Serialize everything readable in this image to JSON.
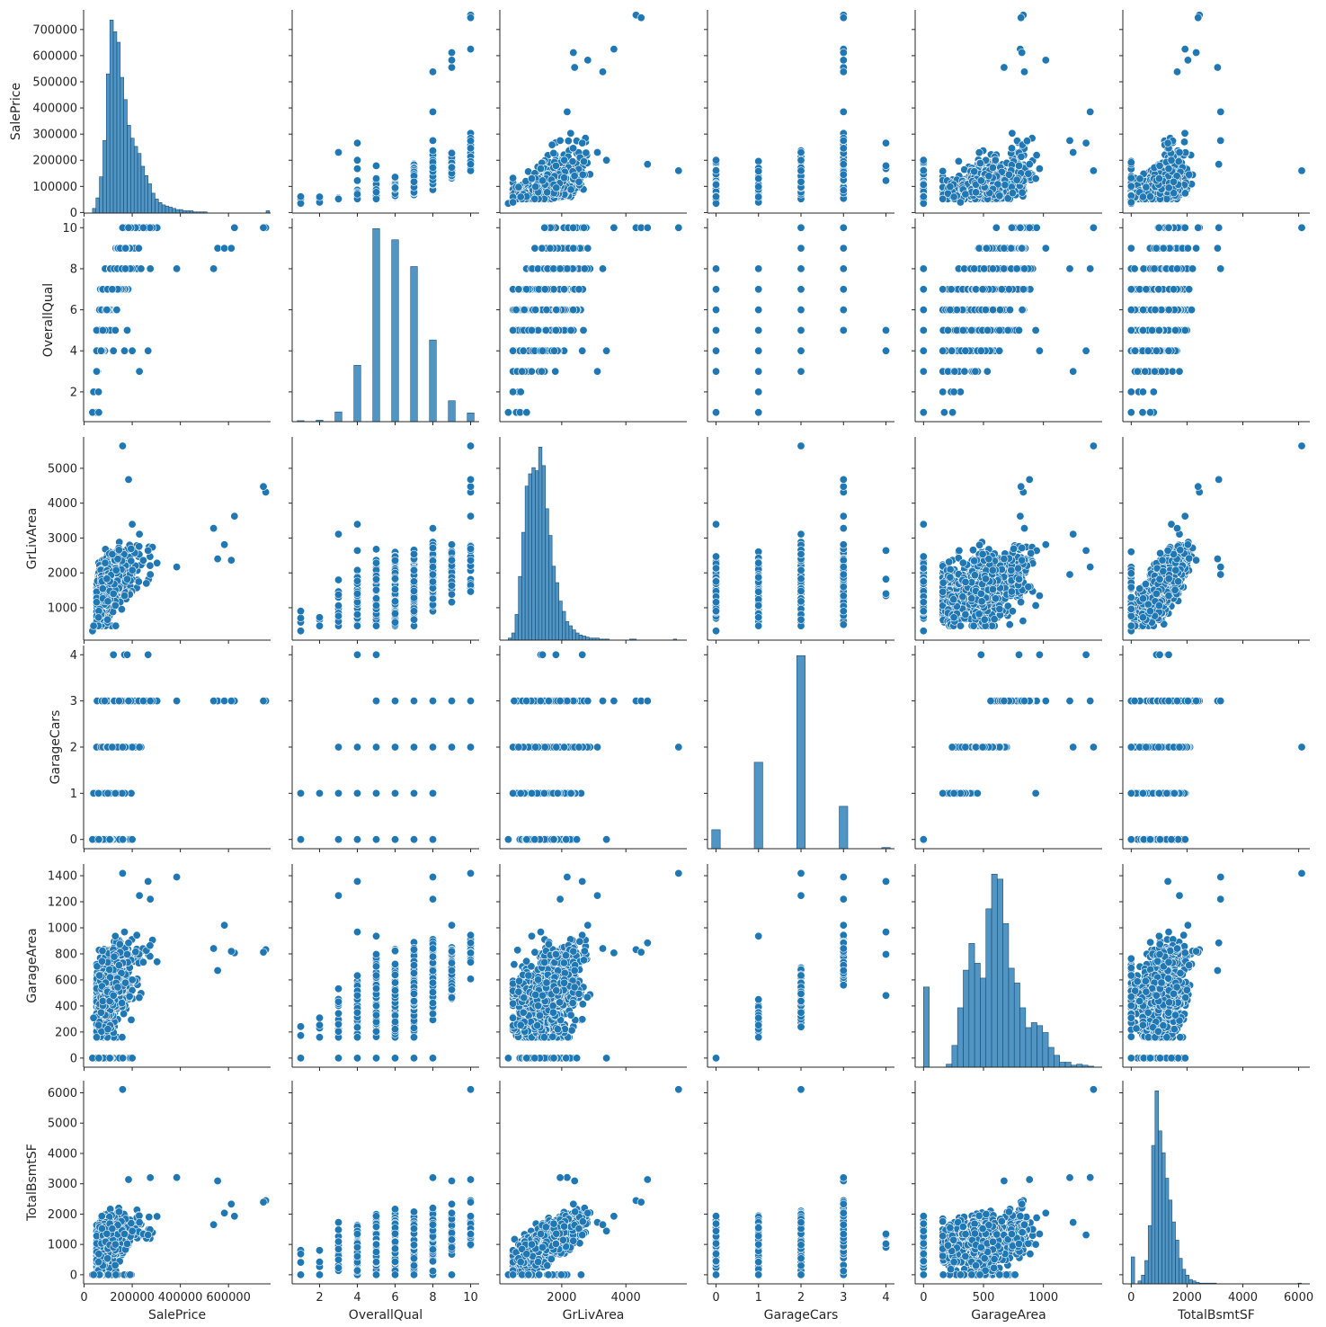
{
  "chart_data": {
    "type": "scatter",
    "kind": "pairplot",
    "color": "#1f77b4",
    "variables": [
      "SalePrice",
      "OverallQual",
      "GrLivArea",
      "GarageCars",
      "GarageArea",
      "TotalBsmtSF"
    ],
    "x_ticks": {
      "SalePrice": [
        0,
        200000,
        400000,
        600000
      ],
      "OverallQual": [
        2,
        4,
        6,
        8,
        10
      ],
      "GrLivArea": [
        2000,
        4000
      ],
      "GarageCars": [
        0,
        1,
        2,
        3,
        4
      ],
      "GarageArea": [
        0,
        500,
        1000
      ],
      "TotalBsmtSF": [
        0,
        2000,
        4000,
        6000
      ]
    },
    "y_ticks": {
      "SalePrice": [
        0,
        100000,
        200000,
        300000,
        400000,
        500000,
        600000,
        700000
      ],
      "OverallQual": [
        2,
        4,
        6,
        8,
        10
      ],
      "GrLivArea": [
        1000,
        2000,
        3000,
        4000,
        5000
      ],
      "GarageCars": [
        0,
        1,
        2,
        3,
        4
      ],
      "GarageArea": [
        0,
        200,
        400,
        600,
        800,
        1000,
        1200,
        1400
      ],
      "TotalBsmtSF": [
        0,
        1000,
        2000,
        3000,
        4000,
        5000,
        6000
      ]
    },
    "ranges": {
      "SalePrice": [
        -2000,
        775000
      ],
      "OverallQual": [
        0.55,
        10.45
      ],
      "GrLivArea": [
        70,
        5900
      ],
      "GarageCars": [
        -0.2,
        4.2
      ],
      "GarageArea": [
        -70,
        1490
      ],
      "TotalBsmtSF": [
        -300,
        6400
      ]
    },
    "histograms": {
      "SalePrice": {
        "bin_start": 34900,
        "bin_width": 14430,
        "counts": [
          4,
          13,
          31,
          62,
          119,
          165,
          155,
          146,
          116,
          97,
          75,
          64,
          57,
          51,
          40,
          32,
          25,
          17,
          12,
          9,
          7,
          6,
          5,
          4,
          3,
          3,
          2,
          2,
          2,
          1,
          1,
          1,
          1,
          0,
          0,
          0,
          0,
          0,
          0,
          0,
          0,
          0,
          0,
          0,
          0,
          0,
          0,
          0,
          0,
          0,
          2
        ]
      },
      "OverallQual": {
        "centers": [
          1,
          2,
          3,
          4,
          5,
          6,
          7,
          8,
          9,
          10
        ],
        "width": 0.36,
        "counts": [
          2,
          3,
          20,
          116,
          397,
          374,
          319,
          168,
          43,
          18
        ]
      },
      "GrLivArea": {
        "bin_start": 334,
        "bin_width": 105,
        "counts": [
          2,
          7,
          25,
          62,
          105,
          150,
          162,
          168,
          165,
          188,
          170,
          128,
          102,
          72,
          56,
          38,
          28,
          18,
          14,
          10,
          7,
          5,
          4,
          3,
          2,
          2,
          2,
          1,
          1,
          1,
          0,
          0,
          0,
          0,
          0,
          0,
          1,
          1,
          0,
          0,
          0,
          0,
          0,
          0,
          0,
          0,
          0,
          0,
          0,
          1
        ]
      },
      "GarageCars": {
        "centers": [
          0,
          1,
          2,
          3,
          4
        ],
        "width": 0.2,
        "counts": [
          81,
          369,
          824,
          181,
          5
        ]
      },
      "GarageArea": {
        "bin_start": 0,
        "bin_width": 47.3,
        "counts": [
          81,
          0,
          0,
          0,
          3,
          22,
          60,
          98,
          125,
          105,
          90,
          160,
          195,
          190,
          145,
          100,
          85,
          60,
          40,
          45,
          42,
          35,
          20,
          12,
          5,
          5,
          2,
          3,
          2,
          1
        ]
      },
      "TotalBsmtSF": {
        "bin_start": 0,
        "bin_width": 122,
        "counts": [
          37,
          0,
          4,
          12,
          32,
          80,
          190,
          265,
          210,
          180,
          145,
          115,
          85,
          60,
          35,
          20,
          12,
          6,
          4,
          2,
          1,
          1,
          1,
          1,
          1,
          0,
          0,
          0,
          0,
          0,
          0,
          0,
          0,
          0,
          0,
          0,
          0,
          0,
          0,
          0,
          0,
          0,
          0,
          0,
          0,
          0,
          0,
          0,
          0,
          1
        ]
      }
    },
    "sample_count": 1460,
    "fixed_points": [
      {
        "SalePrice": 755000,
        "OverallQual": 10,
        "GrLivArea": 4316,
        "GarageCars": 3,
        "GarageArea": 832,
        "TotalBsmtSF": 2444
      },
      {
        "SalePrice": 745000,
        "OverallQual": 10,
        "GrLivArea": 4476,
        "GarageCars": 3,
        "GarageArea": 813,
        "TotalBsmtSF": 2396
      },
      {
        "SalePrice": 160000,
        "OverallQual": 10,
        "GrLivArea": 5642,
        "GarageCars": 2,
        "GarageArea": 1418,
        "TotalBsmtSF": 6110
      },
      {
        "SalePrice": 184750,
        "OverallQual": 10,
        "GrLivArea": 4676,
        "GarageCars": 3,
        "GarageArea": 884,
        "TotalBsmtSF": 3138
      },
      {
        "SalePrice": 625000,
        "OverallQual": 10,
        "GrLivArea": 3627,
        "GarageCars": 3,
        "GarageArea": 807,
        "TotalBsmtSF": 1930
      },
      {
        "SalePrice": 34900,
        "OverallQual": 1,
        "GrLivArea": 334,
        "GarageCars": 0,
        "GarageArea": 0,
        "TotalBsmtSF": 0
      },
      {
        "SalePrice": 61000,
        "OverallQual": 1,
        "GrLivArea": 904,
        "GarageCars": 0,
        "GarageArea": 0,
        "TotalBsmtSF": 683
      },
      {
        "SalePrice": 39300,
        "OverallQual": 2,
        "GrLivArea": 480,
        "GarageCars": 1,
        "GarageArea": 308,
        "TotalBsmtSF": 0
      },
      {
        "SalePrice": 60000,
        "OverallQual": 2,
        "GrLivArea": 720,
        "GarageCars": 1,
        "GarageArea": 253,
        "TotalBsmtSF": 420
      },
      {
        "SalePrice": 200000,
        "OverallQual": 4,
        "GrLivArea": 3395,
        "GarageCars": 0,
        "GarageArea": 0,
        "TotalBsmtSF": 1440
      },
      {
        "SalePrice": 265979,
        "OverallQual": 4,
        "GrLivArea": 2640,
        "GarageCars": 4,
        "GarageArea": 1356,
        "TotalBsmtSF": 1314
      },
      {
        "SalePrice": 168000,
        "OverallQual": 4,
        "GrLivArea": 1344,
        "GarageCars": 4,
        "GarageArea": 968,
        "TotalBsmtSF": 1344
      },
      {
        "SalePrice": 230000,
        "OverallQual": 3,
        "GrLivArea": 3112,
        "GarageCars": 2,
        "GarageArea": 1248,
        "TotalBsmtSF": 1728
      },
      {
        "SalePrice": 555000,
        "OverallQual": 9,
        "GrLivArea": 2402,
        "GarageCars": 3,
        "GarageArea": 672,
        "TotalBsmtSF": 3094
      },
      {
        "SalePrice": 582933,
        "OverallQual": 9,
        "GrLivArea": 2810,
        "GarageCars": 3,
        "GarageArea": 1020,
        "TotalBsmtSF": 2032
      },
      {
        "SalePrice": 611657,
        "OverallQual": 9,
        "GrLivArea": 2364,
        "GarageCars": 3,
        "GarageArea": 820,
        "TotalBsmtSF": 2330
      },
      {
        "SalePrice": 538000,
        "OverallQual": 8,
        "GrLivArea": 3279,
        "GarageCars": 3,
        "GarageArea": 841,
        "TotalBsmtSF": 1650
      },
      {
        "SalePrice": 385000,
        "OverallQual": 8,
        "GrLivArea": 2169,
        "GarageCars": 3,
        "GarageArea": 1390,
        "TotalBsmtSF": 3206
      },
      {
        "SalePrice": 122000,
        "OverallQual": 4,
        "GrLivArea": 1400,
        "GarageCars": 4,
        "GarageArea": 480,
        "TotalBsmtSF": 905
      },
      {
        "SalePrice": 179000,
        "OverallQual": 5,
        "GrLivArea": 1820,
        "GarageCars": 4,
        "GarageArea": 796,
        "TotalBsmtSF": 1020
      },
      {
        "SalePrice": 275000,
        "OverallQual": 8,
        "GrLivArea": 1952,
        "GarageCars": 3,
        "GarageArea": 1220,
        "TotalBsmtSF": 3200
      },
      {
        "SalePrice": 130000,
        "OverallQual": 5,
        "GrLivArea": 1064,
        "GarageCars": 1,
        "GarageArea": 936,
        "TotalBsmtSF": 1000
      }
    ]
  }
}
